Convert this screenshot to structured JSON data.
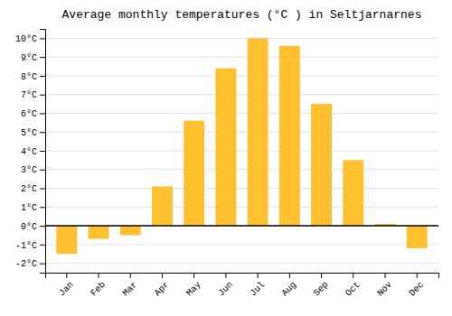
{
  "chart_data": {
    "type": "bar",
    "title": "Average monthly temperatures (°C ) in Seltjarnarnes",
    "categories": [
      "Jan",
      "Feb",
      "Mar",
      "Apr",
      "May",
      "Jun",
      "Jul",
      "Aug",
      "Sep",
      "Oct",
      "Nov",
      "Dec"
    ],
    "values": [
      -1.5,
      -0.7,
      -0.5,
      2.1,
      5.6,
      8.4,
      10.0,
      9.6,
      6.5,
      3.5,
      0.1,
      -1.2
    ],
    "color": "#FFC030",
    "ylim": [
      -2.5,
      10.5
    ],
    "yticks": [
      {
        "value": -2,
        "label": "-2°C"
      },
      {
        "value": -1,
        "label": "-1°C"
      },
      {
        "value": 0,
        "label": "0°C"
      },
      {
        "value": 1,
        "label": "1°C"
      },
      {
        "value": 2,
        "label": "2°C"
      },
      {
        "value": 3,
        "label": "3°C"
      },
      {
        "value": 4,
        "label": "4°C"
      },
      {
        "value": 5,
        "label": "5°C"
      },
      {
        "value": 6,
        "label": "6°C"
      },
      {
        "value": 7,
        "label": "7°C"
      },
      {
        "value": 8,
        "label": "8°C"
      },
      {
        "value": 9,
        "label": "9°C"
      },
      {
        "value": 10,
        "label": "10°C"
      }
    ],
    "grid": true
  }
}
